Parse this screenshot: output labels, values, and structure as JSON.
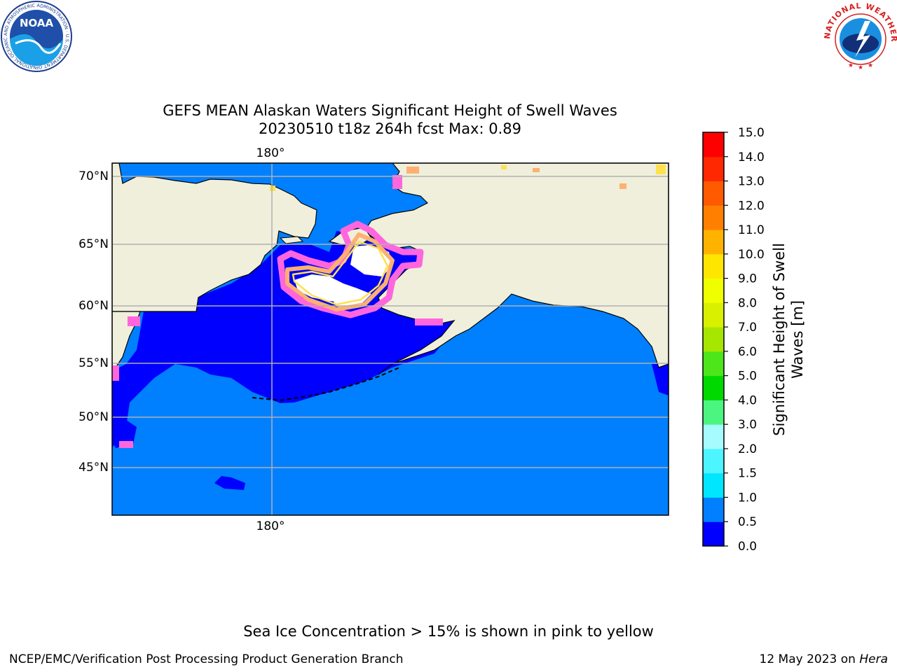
{
  "header": {
    "title_line1": "GEFS MEAN Alaskan Waters Significant Height of Swell Waves",
    "title_line2": "20230510 t18z 264h fcst   Max: 0.89",
    "left_logo_text": "NOAA",
    "left_logo_ring_text": "NATIONAL OCEANIC AND ATMOSPHERIC ADMINISTRATION · U.S. DEPARTMENT OF COMMERCE",
    "right_logo_ring_text": "NATIONAL WEATHER SERVICE"
  },
  "map": {
    "lon_label_top": "180°",
    "lon_label_bottom": "180°",
    "lat_labels": [
      "70°N",
      "65°N",
      "60°N",
      "55°N",
      "50°N",
      "45°N"
    ],
    "colors": {
      "land": "#efefdc",
      "ocean_low": "#0000ff",
      "ocean_mid": "#0080ff",
      "ice_pink": "#ff66dd",
      "ice_orange": "#ffb070",
      "ice_yellow": "#ffee33",
      "gridline": "#b0b0b0"
    }
  },
  "colorbar": {
    "label_line1": "Significant Height of Swell",
    "label_line2": "Waves [m]",
    "ticks": [
      "0.0",
      "0.5",
      "1.0",
      "1.5",
      "2.0",
      "3.0",
      "4.0",
      "5.0",
      "6.0",
      "7.0",
      "8.0",
      "9.0",
      "10.0",
      "11.0",
      "12.0",
      "13.0",
      "14.0",
      "15.0"
    ],
    "colors": [
      "#0000ff",
      "#0080ff",
      "#00e6ff",
      "#4cf5ff",
      "#a6fbff",
      "#4cf580",
      "#00d900",
      "#4ce61a",
      "#a6e600",
      "#d9f000",
      "#f0ff00",
      "#ffe600",
      "#ffb300",
      "#ff8000",
      "#ff5a00",
      "#ff2800",
      "#ff0000"
    ]
  },
  "footer": {
    "ice_note": "Sea Ice Concentration > 15% is shown in pink to yellow",
    "credit": "NCEP/EMC/Verification Post Processing Product Generation Branch",
    "date_prefix": "12 May 2023 on ",
    "date_machine": "Hera"
  }
}
